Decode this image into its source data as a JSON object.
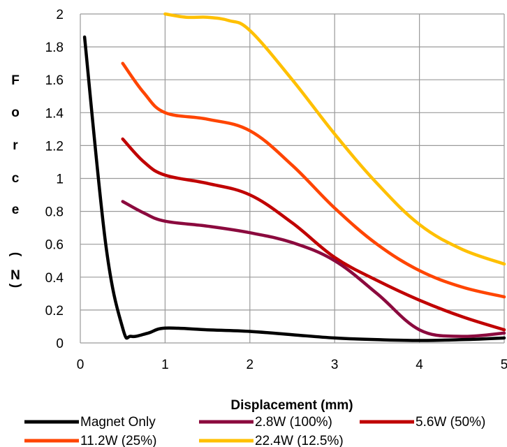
{
  "chart_data": {
    "type": "line",
    "xlabel": "Displacement (mm)",
    "ylabel_letters": [
      "F",
      "o",
      "r",
      "c",
      "e",
      "(",
      "N",
      ")"
    ],
    "xlim": [
      0,
      5
    ],
    "ylim": [
      0,
      2
    ],
    "xticks": [
      "0",
      "1",
      "2",
      "3",
      "4",
      "5"
    ],
    "yticks": [
      "0",
      "0.2",
      "0.4",
      "0.6",
      "0.8",
      "1",
      "1.2",
      "1.4",
      "1.6",
      "1.8",
      "2"
    ],
    "grid": true,
    "legend_position": "bottom",
    "series": [
      {
        "name": "Magnet Only",
        "color": "#000000",
        "x": [
          0.05,
          0.3,
          0.5,
          0.6,
          0.8,
          1.0,
          1.5,
          2.0,
          2.5,
          3.0,
          3.5,
          4.0,
          4.5,
          5.0
        ],
        "y": [
          1.86,
          0.6,
          0.09,
          0.04,
          0.06,
          0.09,
          0.08,
          0.07,
          0.05,
          0.03,
          0.02,
          0.015,
          0.02,
          0.03
        ]
      },
      {
        "name": "2.8W (100%)",
        "color": "#8B0A3E",
        "x": [
          0.5,
          0.75,
          1.0,
          1.5,
          2.0,
          2.5,
          3.0,
          3.5,
          4.0,
          4.5,
          5.0
        ],
        "y": [
          0.86,
          0.79,
          0.74,
          0.71,
          0.67,
          0.61,
          0.5,
          0.3,
          0.08,
          0.04,
          0.06
        ]
      },
      {
        "name": "5.6W (50%)",
        "color": "#C00000",
        "x": [
          0.5,
          0.75,
          1.0,
          1.5,
          2.0,
          2.5,
          3.0,
          3.5,
          4.0,
          4.5,
          5.0
        ],
        "y": [
          1.24,
          1.1,
          1.02,
          0.97,
          0.9,
          0.73,
          0.52,
          0.38,
          0.26,
          0.16,
          0.08
        ]
      },
      {
        "name": "11.2W (25%)",
        "color": "#FF4500",
        "x": [
          0.5,
          0.75,
          1.0,
          1.5,
          2.0,
          2.5,
          3.0,
          3.5,
          4.0,
          4.5,
          5.0
        ],
        "y": [
          1.7,
          1.52,
          1.4,
          1.36,
          1.29,
          1.08,
          0.82,
          0.6,
          0.44,
          0.34,
          0.28
        ]
      },
      {
        "name": "22.4W (12.5%)",
        "color": "#FFC000",
        "x": [
          1.0,
          1.25,
          1.5,
          1.75,
          2.0,
          2.5,
          3.0,
          3.5,
          4.0,
          4.5,
          5.0
        ],
        "y": [
          2.0,
          1.98,
          1.98,
          1.96,
          1.9,
          1.6,
          1.27,
          0.97,
          0.72,
          0.57,
          0.48
        ]
      }
    ]
  }
}
